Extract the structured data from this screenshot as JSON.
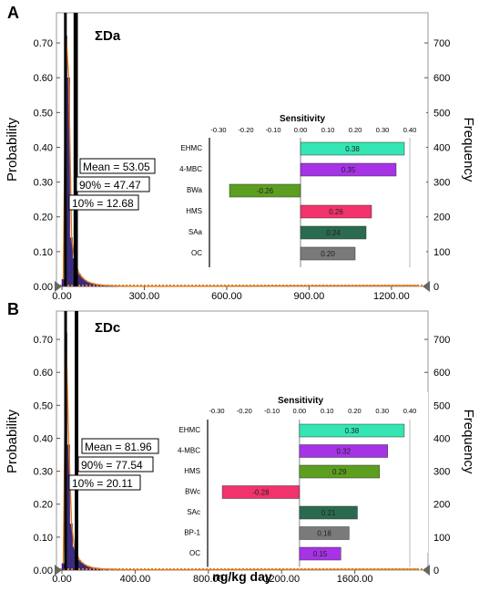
{
  "chart_data": [
    {
      "panel": "A",
      "type": "bar",
      "title": "ΣDa",
      "ylabel_left": "Probability",
      "ylabel_right": "Frequency",
      "xlabel": "",
      "xlim": [
        0,
        1300
      ],
      "ylim": [
        0,
        0.75
      ],
      "xticks": [
        "0.00",
        "300.00",
        "600.00",
        "900.00",
        "1200.00"
      ],
      "xtick_values": [
        0,
        300,
        600,
        900,
        1200
      ],
      "yticks_left": [
        "0.00",
        "0.10",
        "0.20",
        "0.30",
        "0.40",
        "0.50",
        "0.60",
        "0.70"
      ],
      "yticks_right": [
        "0",
        "100",
        "200",
        "300",
        "400",
        "500",
        "600",
        "700"
      ],
      "histogram": {
        "bin_width": 10,
        "x": [
          0,
          10,
          20,
          30,
          40,
          50,
          60,
          70,
          80,
          90,
          100,
          110,
          120,
          130,
          140,
          150,
          160,
          170,
          180,
          190,
          200,
          220,
          240,
          260,
          280,
          300
        ],
        "probability": [
          0.02,
          0.72,
          0.6,
          0.14,
          0.08,
          0.05,
          0.035,
          0.025,
          0.018,
          0.013,
          0.01,
          0.008,
          0.006,
          0.005,
          0.004,
          0.003,
          0.0025,
          0.002,
          0.0018,
          0.0015,
          0.001,
          0.0008,
          0.0006,
          0.0005,
          0.0004,
          0.0003
        ]
      },
      "markers": [
        47.47,
        53.05,
        12.68
      ],
      "annotations": {
        "mean": "Mean = 53.05",
        "p90": "90% = 47.47",
        "p10": "10% = 12.68"
      },
      "sensitivity": {
        "title": "Sensitivity",
        "ticks": [
          "-0.30",
          "-0.20",
          "-0.10",
          "0.00",
          "0.10",
          "0.20",
          "0.30",
          "0.40"
        ],
        "tick_values": [
          -0.3,
          -0.2,
          -0.1,
          0,
          0.1,
          0.2,
          0.3,
          0.4
        ],
        "categories": [
          "EHMC",
          "4-MBC",
          "BWa",
          "HMS",
          "SAa",
          "OC"
        ],
        "values": [
          0.38,
          0.35,
          -0.26,
          0.26,
          0.24,
          0.2
        ],
        "labels": [
          "0.38",
          "0.35",
          "-0.26",
          "0.26",
          "0.24",
          "0.20"
        ],
        "colors": [
          "#33e6b3",
          "#a633e6",
          "#5c9e1f",
          "#f2336b",
          "#2a6b4f",
          "#7a7a7a"
        ]
      }
    },
    {
      "panel": "B",
      "type": "bar",
      "title": "ΣDc",
      "ylabel_left": "Probability",
      "ylabel_right": "Frequency",
      "xlabel": "ng/kg day",
      "xlim": [
        0,
        1950
      ],
      "ylim": [
        0,
        0.75
      ],
      "xticks": [
        "0.00",
        "400.00",
        "800.00",
        "1200.00",
        "1600.00"
      ],
      "xtick_values": [
        0,
        400,
        800,
        1200,
        1600
      ],
      "yticks_left": [
        "0.00",
        "0.10",
        "0.20",
        "0.30",
        "0.40",
        "0.50",
        "0.60",
        "0.70"
      ],
      "yticks_right": [
        "0",
        "100",
        "200",
        "300",
        "400",
        "500",
        "600",
        "700"
      ],
      "histogram": {
        "bin_width": 15,
        "x": [
          0,
          15,
          30,
          45,
          60,
          75,
          90,
          105,
          120,
          135,
          150,
          165,
          180,
          195,
          210,
          240,
          270,
          300,
          330,
          360,
          400
        ],
        "probability": [
          0.02,
          0.72,
          0.38,
          0.14,
          0.07,
          0.045,
          0.03,
          0.022,
          0.016,
          0.012,
          0.009,
          0.007,
          0.006,
          0.005,
          0.004,
          0.003,
          0.0025,
          0.002,
          0.0015,
          0.001,
          0.0008
        ]
      },
      "markers": [
        77.54,
        81.96,
        20.11
      ],
      "annotations": {
        "mean": "Mean = 81.96",
        "p90": "90% = 77.54",
        "p10": "10% = 20.11"
      },
      "sensitivity": {
        "title": "Sensitivity",
        "ticks": [
          "-0.30",
          "-0.20",
          "-0.10",
          "0.00",
          "0.10",
          "0.20",
          "0.30",
          "0.40"
        ],
        "tick_values": [
          -0.3,
          -0.2,
          -0.1,
          0,
          0.1,
          0.2,
          0.3,
          0.4
        ],
        "categories": [
          "EHMC",
          "4-MBC",
          "HMS",
          "BWc",
          "SAc",
          "BP-1",
          "OC"
        ],
        "values": [
          0.38,
          0.32,
          0.29,
          -0.28,
          0.21,
          0.18,
          0.15
        ],
        "labels": [
          "0.38",
          "0.32",
          "0.29",
          "-0.28",
          "0.21",
          "0.18",
          "0.15"
        ],
        "colors": [
          "#33e6b3",
          "#a633e6",
          "#5c9e1f",
          "#f2336b",
          "#2a6b4f",
          "#7a7a7a",
          "#a633e6"
        ]
      }
    }
  ],
  "panel_labels": [
    "A",
    "B"
  ]
}
